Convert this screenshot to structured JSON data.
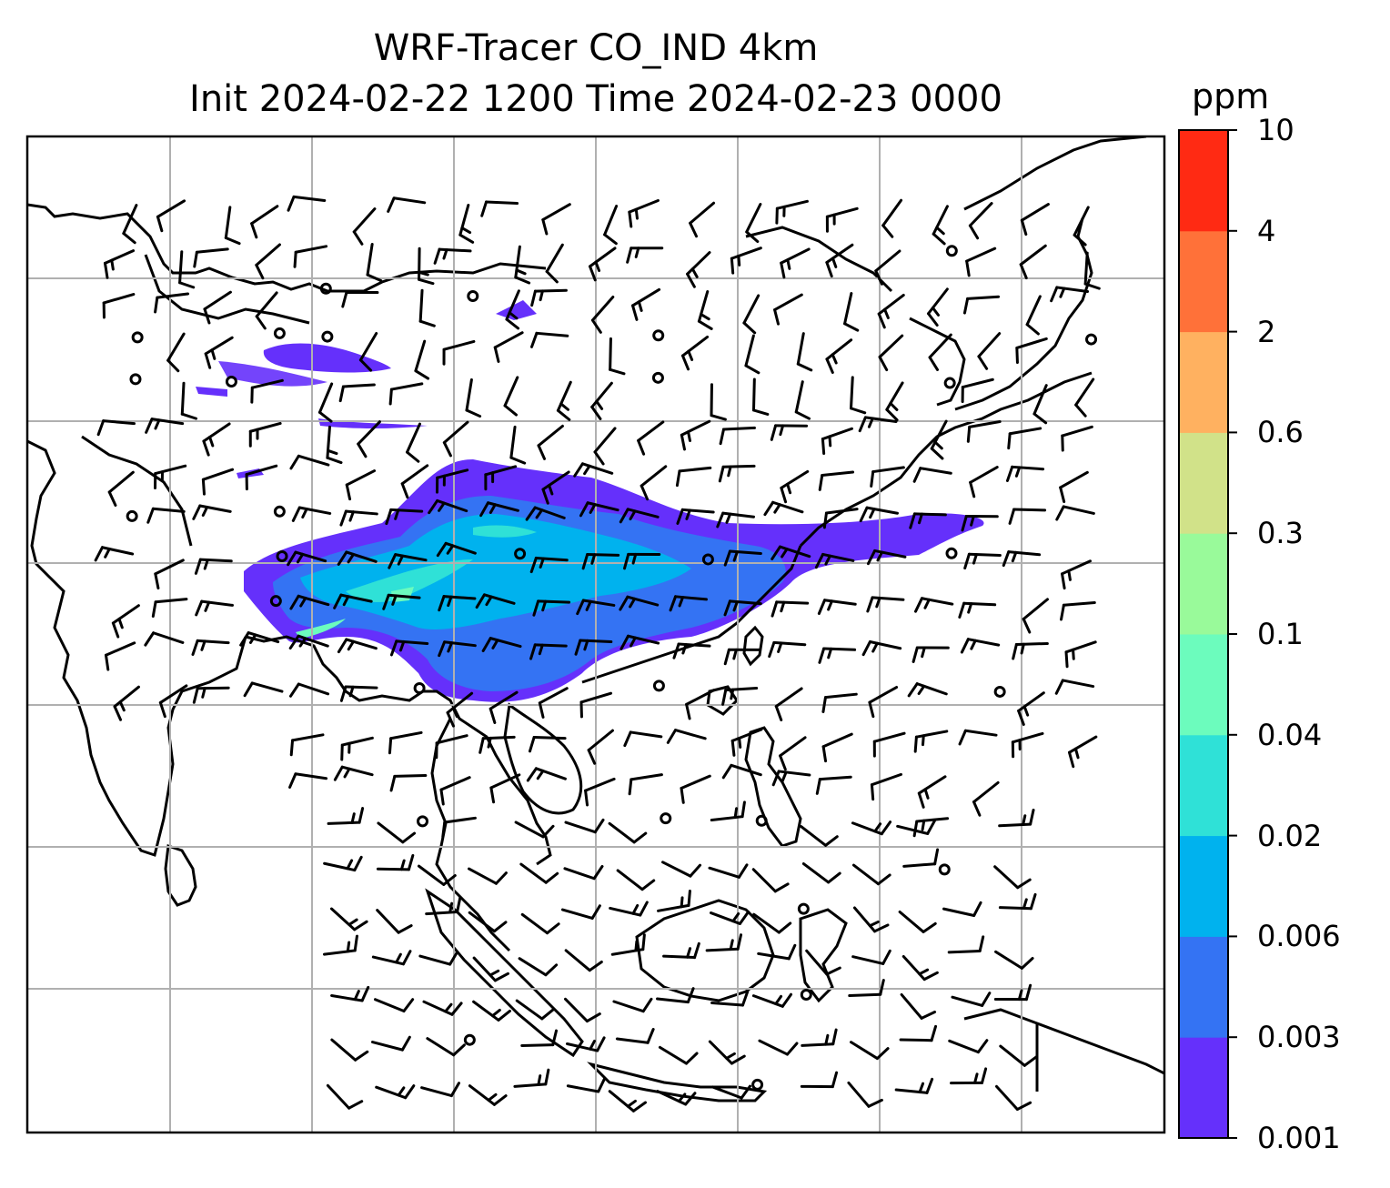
{
  "title": {
    "line1": "WRF-Tracer CO_IND 4km",
    "line2": "Init 2024-02-22 1200 Time 2024-02-23 0000"
  },
  "colorbar": {
    "unit": "ppm",
    "levels": [
      "0.001",
      "0.003",
      "0.006",
      "0.02",
      "0.04",
      "0.1",
      "0.3",
      "0.6",
      "2",
      "4",
      "10"
    ],
    "colors": [
      "#6530fb",
      "#3473f3",
      "#00b2ee",
      "#2fe1d7",
      "#6cfcbd",
      "#99fa9a",
      "#d1e289",
      "#ffb160",
      "#ff7139",
      "#ff2a13"
    ]
  },
  "map": {
    "gridlines": true,
    "field": "CO_IND tracer concentration with wind barbs",
    "coastline_color": "#000000",
    "grid_color": "#b0b0b0"
  }
}
